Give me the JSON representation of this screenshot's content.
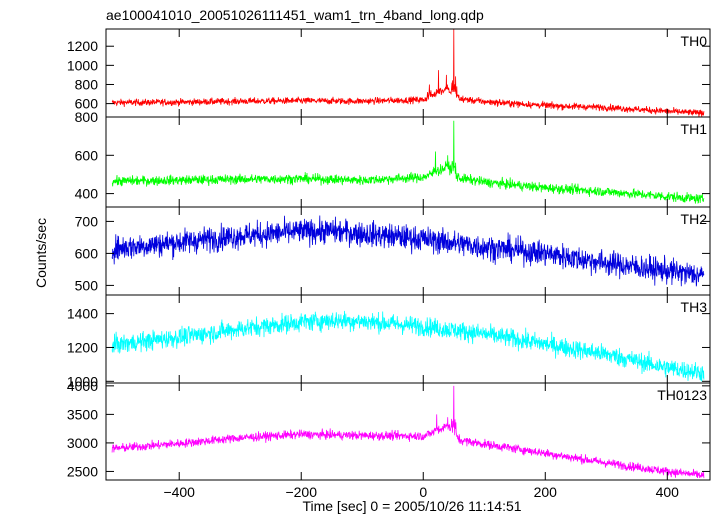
{
  "chart_data": {
    "type": "line",
    "title": "ae100041010_20051026111451_wam1_trn_4band_long.qdp",
    "xlabel": "Time [sec] 0 = 2005/10/26 11:14:51",
    "ylabel": "Counts/sec",
    "xlim": [
      -520,
      470
    ],
    "xticks": [
      -400,
      -200,
      0,
      200,
      400
    ],
    "xtick_labels": [
      "−400",
      "−200",
      "0",
      "200",
      "400"
    ],
    "grid": false,
    "legend": "none",
    "panels": [
      {
        "name": "TH0",
        "color": "#ff0000",
        "ylim": [
          460,
          1380
        ],
        "yticks": [
          600,
          800,
          1000,
          1200
        ],
        "ytick_labels": [
          "600",
          "800",
          "1000",
          "1200"
        ],
        "noise": 25,
        "x": [
          -510,
          -400,
          -300,
          -200,
          -100,
          0,
          20,
          40,
          50,
          60,
          100,
          200,
          300,
          400,
          460
        ],
        "y": [
          610,
          615,
          625,
          630,
          625,
          640,
          700,
          750,
          680,
          650,
          620,
          580,
          560,
          520,
          500
        ],
        "spikes": [
          {
            "x": 10,
            "y": 800
          },
          {
            "x": 25,
            "y": 950
          },
          {
            "x": 38,
            "y": 900
          },
          {
            "x": 50,
            "y": 1380
          },
          {
            "x": 55,
            "y": 780
          }
        ]
      },
      {
        "name": "TH1",
        "color": "#00ff00",
        "ylim": [
          330,
          800
        ],
        "yticks": [
          400,
          600,
          800
        ],
        "ytick_labels": [
          "400",
          "600",
          "800"
        ],
        "noise": 18,
        "x": [
          -510,
          -400,
          -300,
          -200,
          -100,
          0,
          20,
          40,
          50,
          60,
          100,
          200,
          300,
          400,
          460
        ],
        "y": [
          465,
          470,
          475,
          478,
          470,
          485,
          510,
          540,
          500,
          480,
          460,
          430,
          410,
          385,
          370
        ],
        "spikes": [
          {
            "x": 20,
            "y": 620
          },
          {
            "x": 40,
            "y": 600
          },
          {
            "x": 50,
            "y": 780
          }
        ]
      },
      {
        "name": "TH2",
        "color": "#0000dd",
        "ylim": [
          470,
          745
        ],
        "yticks": [
          500,
          600,
          700
        ],
        "ytick_labels": [
          "500",
          "600",
          "700"
        ],
        "noise": 28,
        "x": [
          -510,
          -400,
          -300,
          -200,
          -150,
          -100,
          0,
          100,
          200,
          300,
          400,
          460
        ],
        "y": [
          615,
          635,
          655,
          668,
          670,
          662,
          645,
          620,
          600,
          570,
          545,
          530
        ],
        "spikes": []
      },
      {
        "name": "TH3",
        "color": "#00ffff",
        "ylim": [
          990,
          1510
        ],
        "yticks": [
          1000,
          1200,
          1400
        ],
        "ytick_labels": [
          "1000",
          "1200",
          "1400"
        ],
        "noise": 40,
        "x": [
          -510,
          -400,
          -300,
          -200,
          -150,
          -100,
          0,
          100,
          200,
          300,
          400,
          460
        ],
        "y": [
          1215,
          1260,
          1310,
          1350,
          1360,
          1355,
          1325,
          1280,
          1220,
          1160,
          1080,
          1050
        ],
        "spikes": []
      },
      {
        "name": "TH0123",
        "color": "#ff00ff",
        "ylim": [
          2350,
          4050
        ],
        "yticks": [
          2500,
          3000,
          3500,
          4000
        ],
        "ytick_labels": [
          "2500",
          "3000",
          "3500",
          "4000"
        ],
        "noise": 55,
        "x": [
          -510,
          -400,
          -300,
          -200,
          -100,
          0,
          20,
          40,
          50,
          60,
          100,
          200,
          300,
          400,
          460
        ],
        "y": [
          2900,
          2990,
          3090,
          3150,
          3130,
          3120,
          3200,
          3300,
          3200,
          3050,
          2980,
          2820,
          2650,
          2500,
          2430
        ],
        "spikes": [
          {
            "x": 22,
            "y": 3500
          },
          {
            "x": 40,
            "y": 3450
          },
          {
            "x": 50,
            "y": 4000
          }
        ]
      }
    ]
  }
}
